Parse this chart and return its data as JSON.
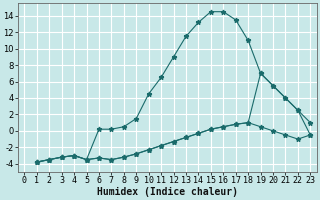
{
  "xlabel": "Humidex (Indice chaleur)",
  "bg_color": "#c8e8e8",
  "grid_color": "#ffffff",
  "line_color": "#1a6b6b",
  "xlim": [
    -0.5,
    23.5
  ],
  "ylim": [
    -5,
    15.5
  ],
  "xticks": [
    0,
    1,
    2,
    3,
    4,
    5,
    6,
    7,
    8,
    9,
    10,
    11,
    12,
    13,
    14,
    15,
    16,
    17,
    18,
    19,
    20,
    21,
    22,
    23
  ],
  "yticks": [
    -4,
    -2,
    0,
    2,
    4,
    6,
    8,
    10,
    12,
    14
  ],
  "series1_x": [
    1,
    2,
    3,
    4,
    5,
    6,
    7,
    8,
    9,
    10,
    11,
    12,
    13,
    14,
    15,
    16,
    17,
    18,
    19,
    20,
    21,
    22,
    23
  ],
  "series1_y": [
    -3.8,
    -3.5,
    -3.2,
    -3.0,
    -3.5,
    0.2,
    0.2,
    0.5,
    1.5,
    4.5,
    6.5,
    9.0,
    11.5,
    13.2,
    14.5,
    14.5,
    13.5,
    11.0,
    7.0,
    5.5,
    4.0,
    2.5,
    1.0
  ],
  "series2_x": [
    1,
    2,
    3,
    4,
    5,
    6,
    7,
    8,
    9,
    10,
    11,
    12,
    13,
    14,
    15,
    16,
    17,
    18,
    19,
    20,
    21,
    22,
    23
  ],
  "series2_y": [
    -3.8,
    -3.5,
    -3.2,
    -3.0,
    -3.5,
    -3.3,
    -3.5,
    -3.2,
    -2.8,
    -2.3,
    -1.8,
    -1.3,
    -0.8,
    -0.3,
    0.2,
    0.5,
    0.8,
    1.0,
    7.0,
    5.5,
    4.0,
    2.5,
    -0.5
  ],
  "series3_x": [
    1,
    2,
    3,
    4,
    5,
    6,
    7,
    8,
    9,
    10,
    11,
    12,
    13,
    14,
    15,
    16,
    17,
    18,
    19,
    20,
    21,
    22,
    23
  ],
  "series3_y": [
    -3.8,
    -3.5,
    -3.2,
    -3.0,
    -3.5,
    -3.3,
    -3.5,
    -3.2,
    -2.8,
    -2.3,
    -1.8,
    -1.3,
    -0.8,
    -0.3,
    0.2,
    0.5,
    0.8,
    1.0,
    0.5,
    0.0,
    -0.5,
    -1.0,
    -0.5
  ],
  "xlabel_fontsize": 7,
  "tick_fontsize": 6
}
